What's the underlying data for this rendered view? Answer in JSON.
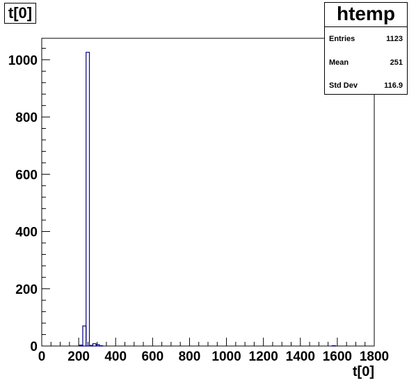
{
  "chart_data": {
    "type": "bar",
    "title": "t[0]",
    "xlabel": "t[0]",
    "ylabel": "",
    "xlim": [
      0,
      1800
    ],
    "ylim": [
      0,
      1075
    ],
    "x_ticks": [
      0,
      200,
      400,
      600,
      800,
      1000,
      1200,
      1400,
      1600,
      1800
    ],
    "y_ticks": [
      0,
      200,
      400,
      600,
      800,
      1000
    ],
    "grid": false,
    "line_color": "#000080",
    "bins": [
      {
        "x0": 204,
        "x1": 222,
        "count": 3
      },
      {
        "x0": 222,
        "x1": 240,
        "count": 70
      },
      {
        "x0": 240,
        "x1": 258,
        "count": 1026
      },
      {
        "x0": 258,
        "x1": 276,
        "count": 2
      },
      {
        "x0": 276,
        "x1": 294,
        "count": 8
      },
      {
        "x0": 294,
        "x1": 312,
        "count": 5
      },
      {
        "x0": 312,
        "x1": 330,
        "count": 1
      },
      {
        "x0": 1572,
        "x1": 1590,
        "count": 1
      }
    ],
    "stats": {
      "name": "htemp",
      "entries_label": "Entries",
      "entries": "1123",
      "mean_label": "Mean",
      "mean": "251",
      "stddev_label": "Std Dev",
      "stddev": "116.9"
    }
  }
}
